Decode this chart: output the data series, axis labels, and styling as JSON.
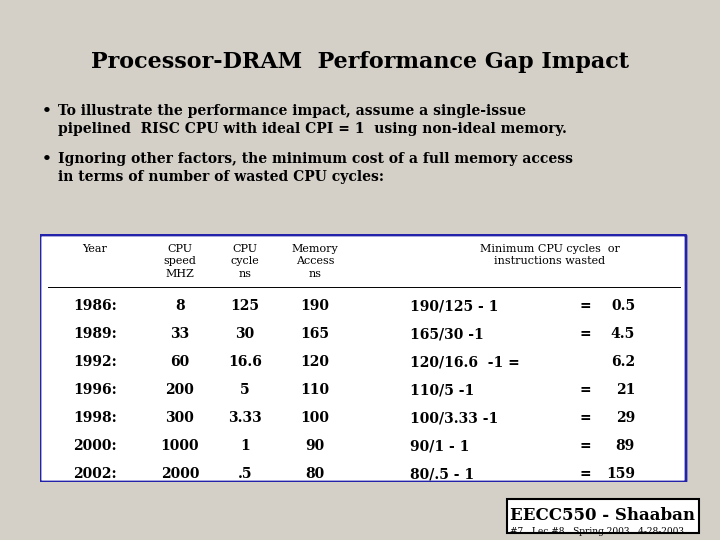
{
  "title": "Processor-DRAM  Performance Gap Impact",
  "bullet1_line1": "To illustrate the performance impact, assume a single-issue",
  "bullet1_line2": "pipelined  RISC CPU with ideal CPI = 1  using non-ideal memory.",
  "bullet2_line1": "Ignoring other factors, the minimum cost of a full memory access",
  "bullet2_line2": "in terms of number of wasted CPU cycles:",
  "table_header_col1": "Year",
  "table_header_col2": "CPU\nspeed\nMHZ",
  "table_header_col3": "CPU\ncycle\nns",
  "table_header_col4": "Memory\nAccess\nns",
  "table_header_col5": "Minimum CPU cycles  or\ninstructions wasted",
  "table_rows": [
    [
      "1986:",
      "8",
      "125",
      "190",
      "190/125 - 1",
      "=",
      "0.5"
    ],
    [
      "1989:",
      "33",
      "30",
      "165",
      "165/30 -1",
      "=",
      "4.5"
    ],
    [
      "1992:",
      "60",
      "16.6",
      "120",
      "120/16.6  -1 =",
      "",
      "6.2"
    ],
    [
      "1996:",
      "200",
      "5",
      "110",
      "110/5 -1",
      "=",
      "21"
    ],
    [
      "1998:",
      "300",
      "3.33",
      "100",
      "100/3.33 -1",
      "=",
      "29"
    ],
    [
      "2000:",
      "1000",
      "1",
      "90",
      "90/1 - 1",
      "=",
      "89"
    ],
    [
      "2002:",
      "2000",
      ".5",
      "80",
      "80/.5 - 1",
      "=",
      "159"
    ]
  ],
  "footer_box": "EECC550 - Shaaban",
  "footer_small": "#7   Lec #8   Spring 2003   4-28-2003",
  "bg_color": "#d4d0c8",
  "slide_bg": "#ffffff",
  "table_border_color": "#2222aa",
  "title_color": "#000000",
  "text_color": "#000000"
}
